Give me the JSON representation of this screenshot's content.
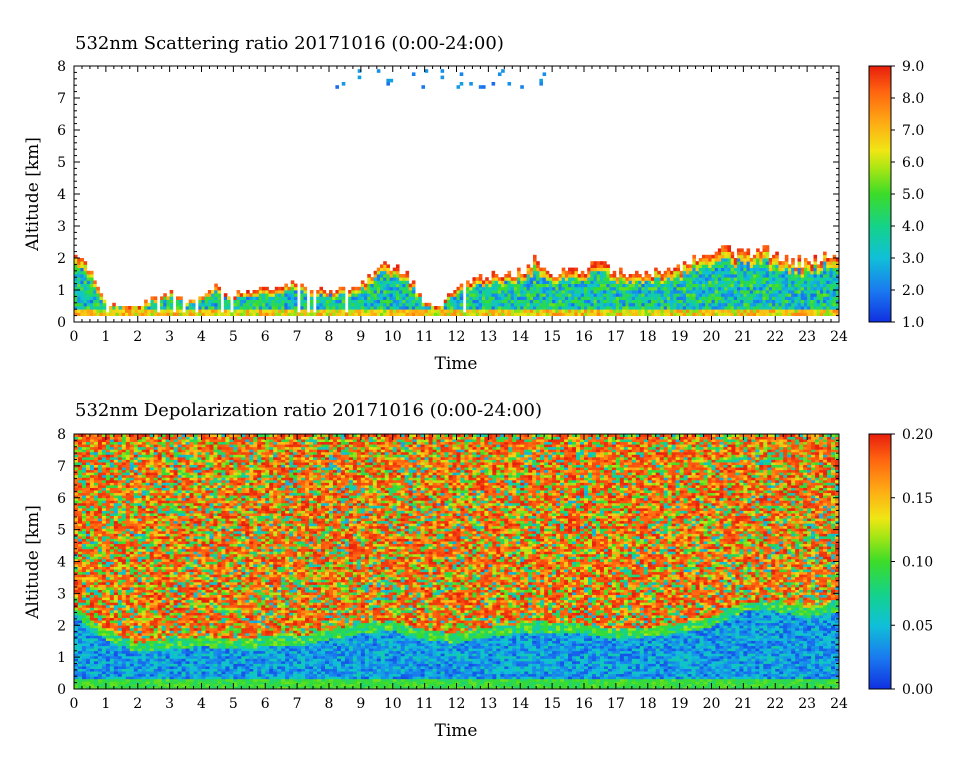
{
  "chart_data": [
    {
      "type": "heatmap",
      "title": "532nm Scattering ratio  20171016 (0:00-24:00)",
      "xlabel": "Time",
      "ylabel": "Altitude [km]",
      "xlim": [
        0,
        24
      ],
      "ylim": [
        0,
        8
      ],
      "xticks": [
        "0",
        "1",
        "2",
        "3",
        "4",
        "5",
        "6",
        "7",
        "8",
        "9",
        "10",
        "11",
        "12",
        "13",
        "14",
        "15",
        "16",
        "17",
        "18",
        "19",
        "20",
        "21",
        "22",
        "23",
        "24"
      ],
      "yticks": [
        "0",
        "1",
        "2",
        "3",
        "4",
        "5",
        "6",
        "7",
        "8"
      ],
      "colorbar": {
        "range": [
          1.0,
          9.0
        ],
        "ticks": [
          "1.0",
          "2.0",
          "3.0",
          "4.0",
          "5.0",
          "6.0",
          "7.0",
          "8.0",
          "9.0"
        ]
      },
      "layer_top_km": [
        [
          0,
          2.4
        ],
        [
          0.5,
          1.7
        ],
        [
          1,
          0.6
        ],
        [
          2,
          0.5
        ],
        [
          2.5,
          0.8
        ],
        [
          3,
          1.0
        ],
        [
          3.5,
          0.7
        ],
        [
          4,
          0.9
        ],
        [
          4.5,
          1.2
        ],
        [
          5,
          0.9
        ],
        [
          6,
          1.1
        ],
        [
          7,
          1.3
        ],
        [
          8,
          1.0
        ],
        [
          9,
          1.2
        ],
        [
          9.5,
          1.8
        ],
        [
          10,
          1.9
        ],
        [
          10.5,
          1.5
        ],
        [
          11,
          0.6
        ],
        [
          11.5,
          0.5
        ],
        [
          12,
          1.2
        ],
        [
          13,
          1.5
        ],
        [
          14,
          1.7
        ],
        [
          14.5,
          2.1
        ],
        [
          15,
          1.5
        ],
        [
          15.5,
          1.8
        ],
        [
          16,
          1.6
        ],
        [
          16.5,
          2.2
        ],
        [
          17,
          1.6
        ],
        [
          18,
          1.6
        ],
        [
          19,
          1.8
        ],
        [
          20,
          2.4
        ],
        [
          21,
          2.2
        ],
        [
          22,
          2.3
        ],
        [
          23,
          1.9
        ],
        [
          24,
          2.4
        ]
      ]
    },
    {
      "type": "heatmap",
      "title": "532nm Depolarization ratio  20171016 (0:00-24:00)",
      "xlabel": "Time",
      "ylabel": "Altitude [km]",
      "xlim": [
        0,
        24
      ],
      "ylim": [
        0,
        8
      ],
      "xticks": [
        "0",
        "1",
        "2",
        "3",
        "4",
        "5",
        "6",
        "7",
        "8",
        "9",
        "10",
        "11",
        "12",
        "13",
        "14",
        "15",
        "16",
        "17",
        "18",
        "19",
        "20",
        "21",
        "22",
        "23",
        "24"
      ],
      "yticks": [
        "0",
        "1",
        "2",
        "3",
        "4",
        "5",
        "6",
        "7",
        "8"
      ],
      "colorbar": {
        "range": [
          0.0,
          0.2
        ],
        "ticks": [
          "0.00",
          "0.05",
          "0.10",
          "0.15",
          "0.20"
        ]
      },
      "layer_top_km": [
        [
          0,
          2.5
        ],
        [
          1,
          1.7
        ],
        [
          2,
          1.3
        ],
        [
          3,
          1.4
        ],
        [
          4,
          1.5
        ],
        [
          5,
          1.4
        ],
        [
          6,
          1.5
        ],
        [
          7,
          1.5
        ],
        [
          8,
          1.7
        ],
        [
          9,
          1.9
        ],
        [
          10,
          2.0
        ],
        [
          11,
          1.7
        ],
        [
          12,
          1.6
        ],
        [
          13,
          1.8
        ],
        [
          14,
          1.9
        ],
        [
          15,
          1.9
        ],
        [
          16,
          1.9
        ],
        [
          17,
          1.7
        ],
        [
          18,
          1.8
        ],
        [
          19,
          1.9
        ],
        [
          20,
          2.1
        ],
        [
          21,
          2.6
        ],
        [
          22,
          2.6
        ],
        [
          23,
          2.4
        ],
        [
          24,
          2.6
        ]
      ]
    }
  ]
}
